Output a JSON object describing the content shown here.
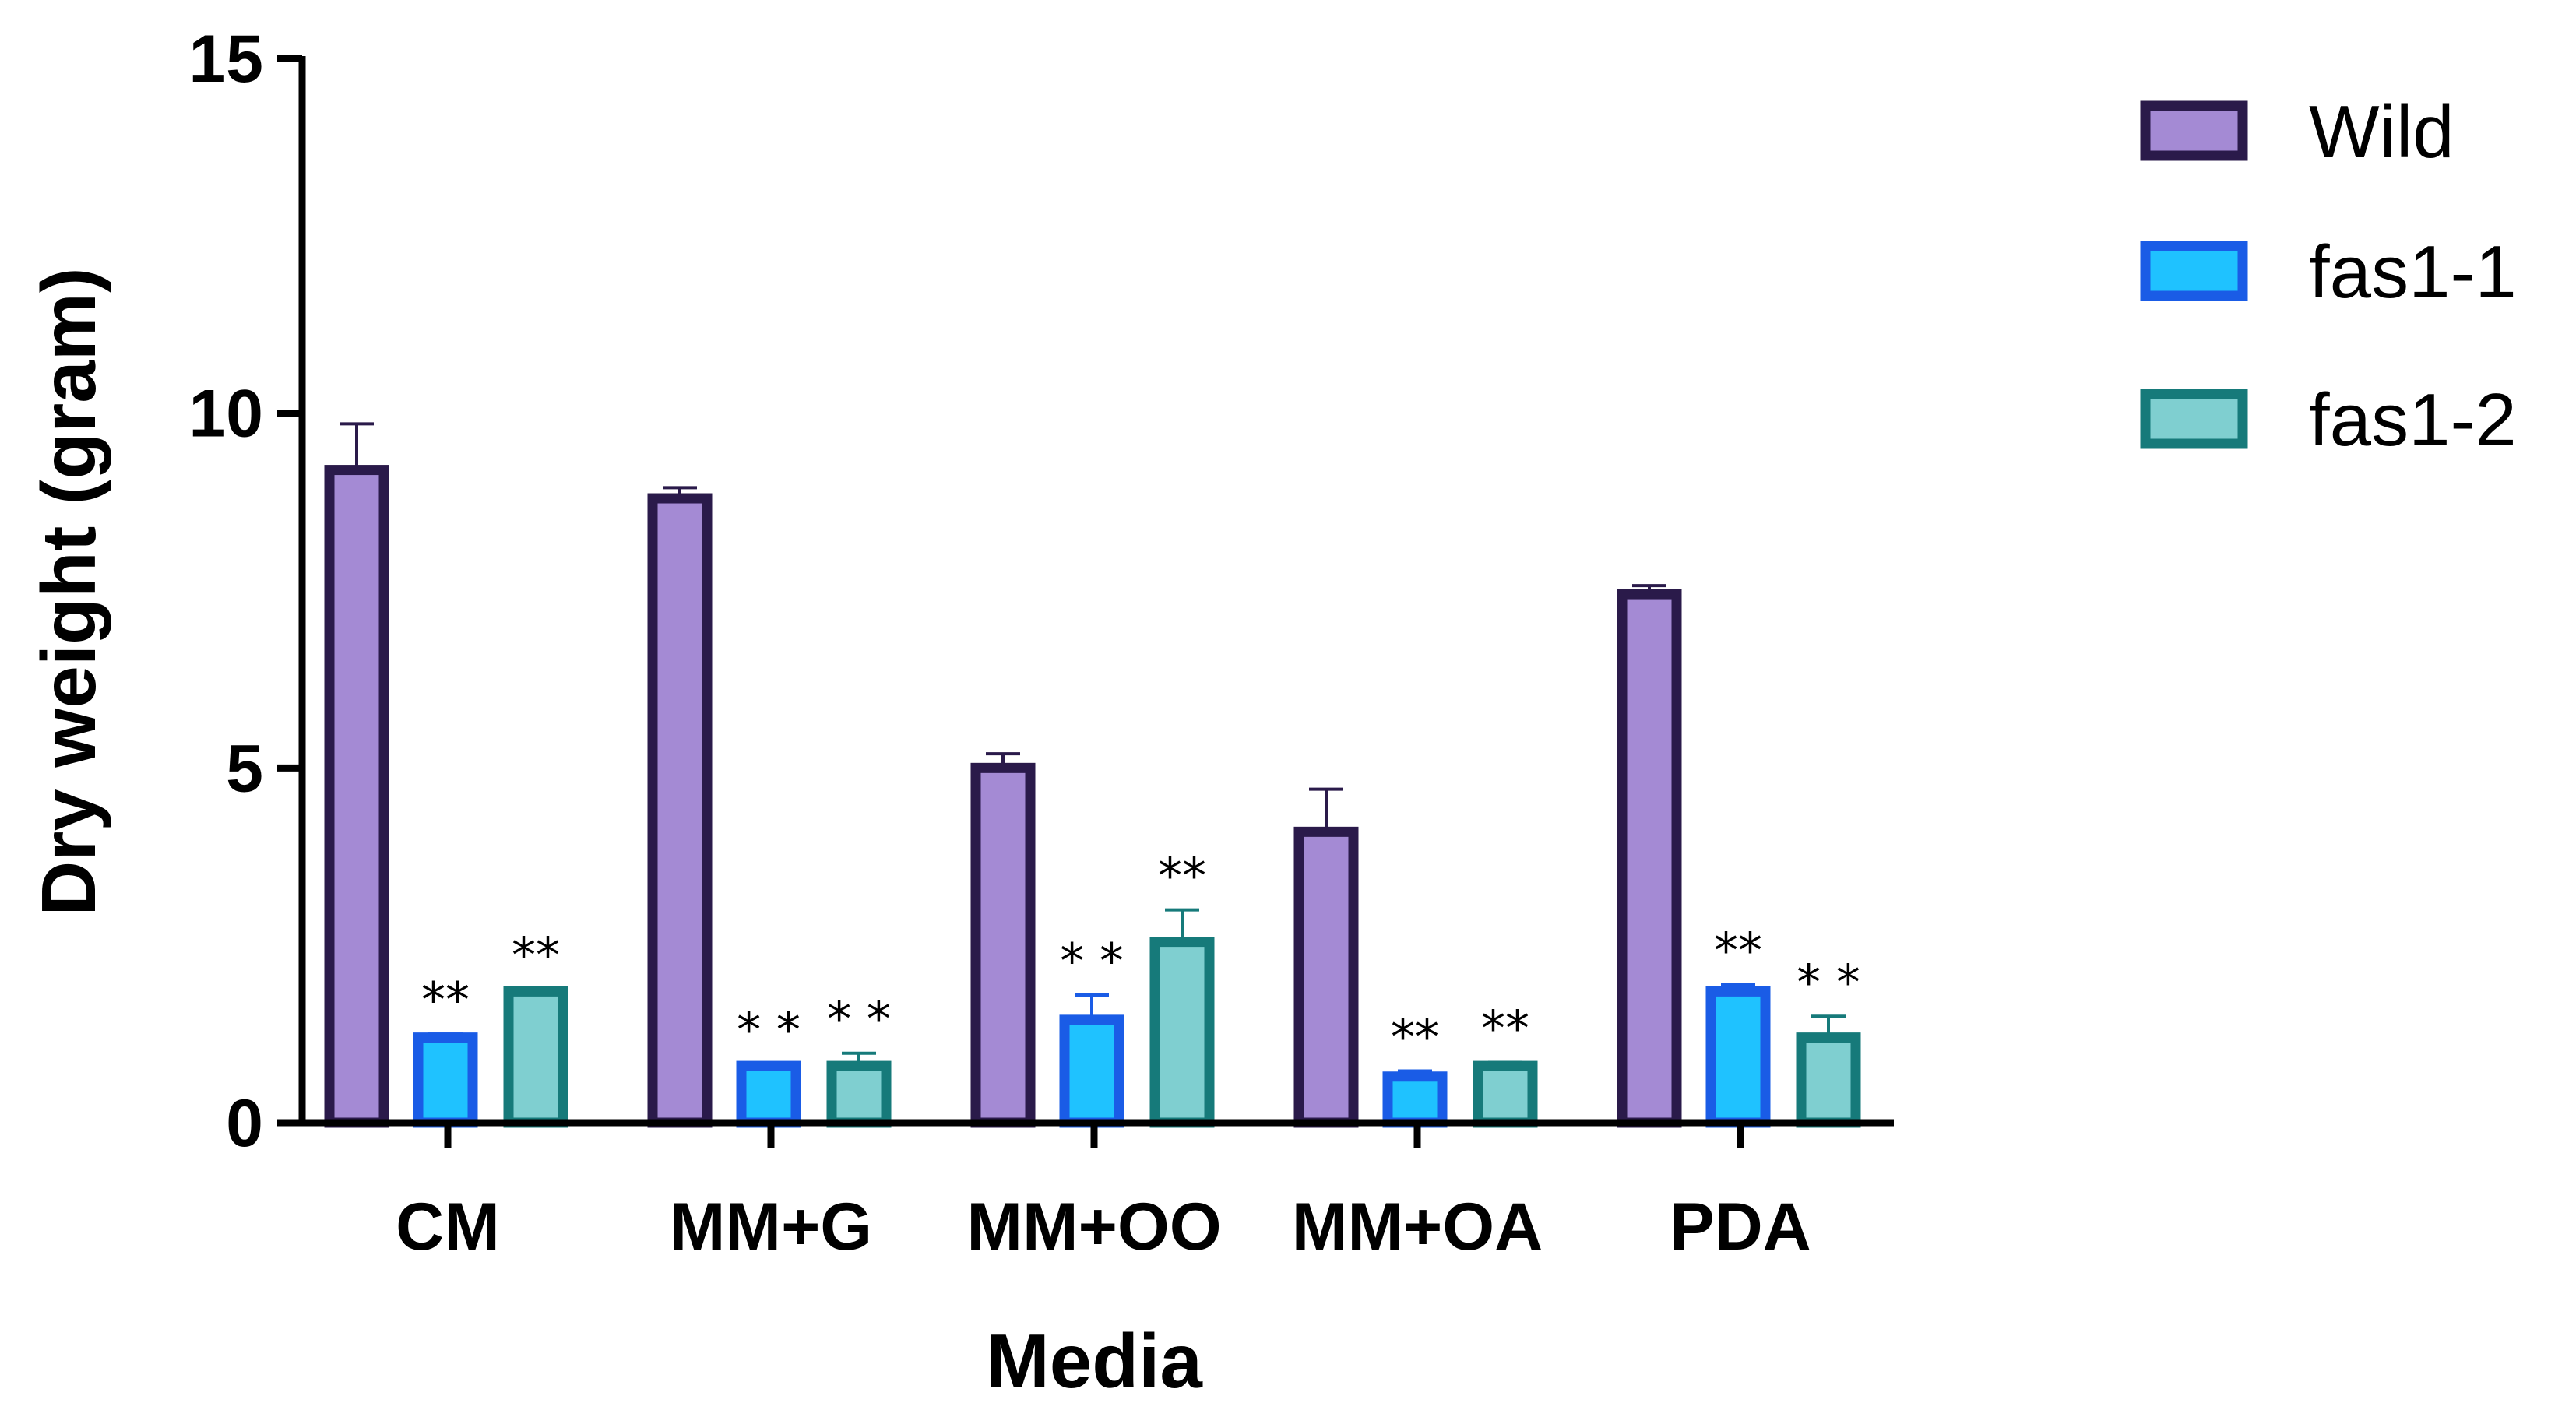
{
  "chart_data": {
    "type": "bar",
    "title": "",
    "xlabel": "Media",
    "ylabel": "Dry weight (gram)",
    "ylim": [
      0,
      15
    ],
    "yticks": [
      0,
      5,
      10,
      15
    ],
    "grid": false,
    "legend_position": "top-right",
    "categories": [
      "CM",
      "MM+G",
      "MM+OO",
      "MM+OA",
      "PDA"
    ],
    "series": [
      {
        "name": "Wild",
        "fill": "#a48ad4",
        "stroke": "#2a1a4a",
        "values": [
          9.2,
          8.8,
          5.0,
          4.1,
          7.45
        ],
        "errors": [
          0.65,
          0.15,
          0.2,
          0.6,
          0.12
        ],
        "significance": [
          "",
          "",
          "",
          "",
          ""
        ]
      },
      {
        "name": "fas1-1",
        "fill": "#1fc2ff",
        "stroke": "#1a5ce6",
        "values": [
          1.2,
          0.8,
          1.45,
          0.65,
          1.85
        ],
        "errors": [
          0.05,
          0.03,
          0.35,
          0.08,
          0.1
        ],
        "significance": [
          "**",
          "* *",
          "* *",
          "**",
          "**"
        ]
      },
      {
        "name": "fas1-2",
        "fill": "#7fcfd0",
        "stroke": "#167a7a",
        "values": [
          1.85,
          0.8,
          2.55,
          0.8,
          1.2
        ],
        "errors": [
          0.03,
          0.18,
          0.45,
          0.05,
          0.3
        ],
        "significance": [
          "**",
          "* *",
          "**",
          "**",
          "* *"
        ]
      }
    ]
  }
}
